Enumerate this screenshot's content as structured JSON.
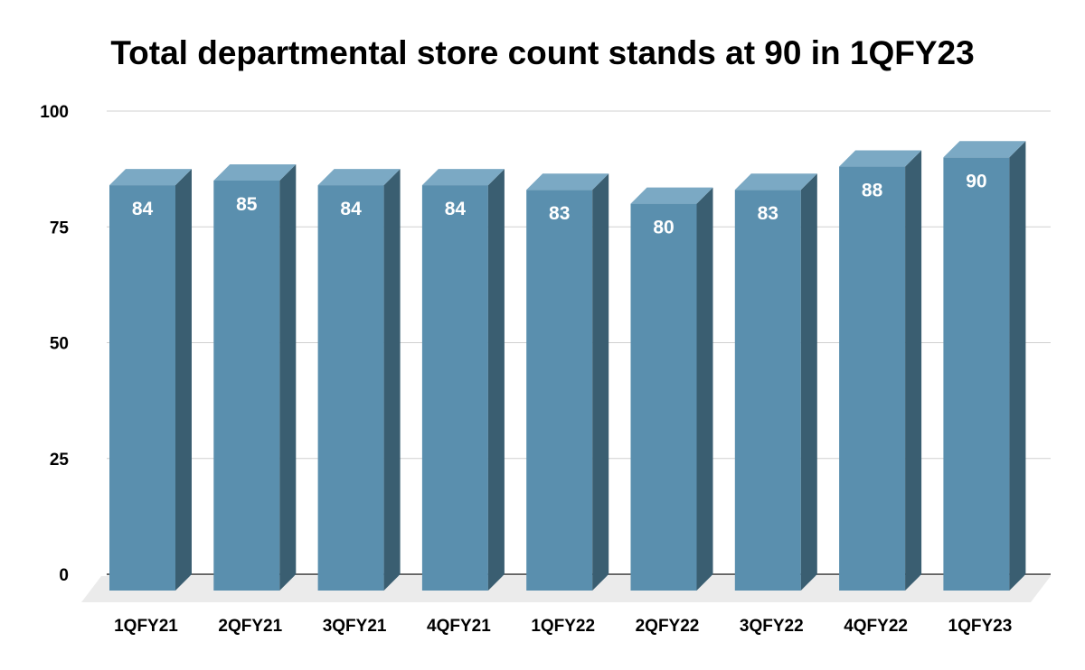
{
  "chart_data": {
    "type": "bar",
    "title": "Total departmental store count stands at 90 in 1QFY23",
    "categories": [
      "1QFY21",
      "2QFY21",
      "3QFY21",
      "4QFY21",
      "1QFY22",
      "2QFY22",
      "3QFY22",
      "4QFY22",
      "1QFY23"
    ],
    "values": [
      84,
      85,
      84,
      84,
      83,
      80,
      83,
      88,
      90
    ],
    "ylim": [
      0,
      100
    ],
    "yticks": [
      0,
      25,
      50,
      75,
      100
    ],
    "grid": true,
    "style": "3d-column",
    "colors": {
      "front": "#5a8fae",
      "side": "#3a5e71",
      "top": "#7ba9c4",
      "floor": "#ebebeb",
      "grid": "#d0d0d0"
    }
  }
}
